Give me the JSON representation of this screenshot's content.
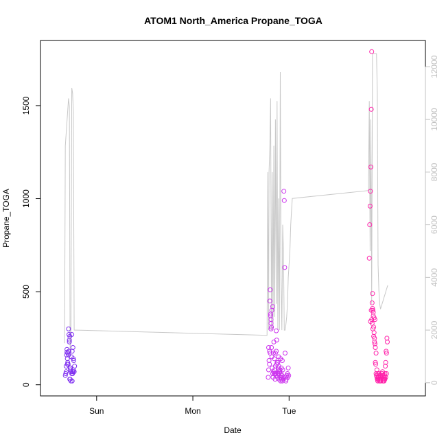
{
  "chart_data": {
    "type": "scatter",
    "title": "ATOM1 North_America Propane_TOGA",
    "xlabel": "Date",
    "ylabel": "Propane_TOGA",
    "x_ticks": [
      "Sun",
      "Mon",
      "Tue"
    ],
    "y_ticks": [
      0,
      500,
      1000,
      1500
    ],
    "y2_ticks": [
      0,
      2000,
      4000,
      6000,
      8000,
      10000,
      12000
    ],
    "ylim": [
      -60,
      1850
    ],
    "y2lim": [
      -500,
      13000
    ],
    "xlim_hours": [
      -14,
      82
    ],
    "x_tick_hours": [
      0,
      24,
      48
    ],
    "grid": false,
    "colors": {
      "cluster1": "#7f2ff0",
      "cluster2": "#cc33ee",
      "cluster3": "#ff22aa",
      "secondary_line": "#c8c8c8",
      "right_axis": "#c0c0c0"
    },
    "series": [
      {
        "kind": "points",
        "x_hours": [
          -7.8,
          -7.7,
          -7.6,
          -7.5,
          -7.4,
          -7.3,
          -7.2,
          -7.1,
          -7.0,
          -6.9,
          -6.8,
          -6.7,
          -6.6,
          -6.5,
          -6.4,
          -6.3,
          -6.2,
          -6.1,
          -6.0,
          -5.9,
          -5.8,
          -5.7,
          -5.6,
          -5.5,
          -7.6,
          -7.4,
          -7.2,
          -7.0,
          -6.8,
          -6.6,
          -6.4,
          -6.2,
          -6.0,
          -5.8,
          -6.9,
          -6.5,
          -6.1,
          -5.7,
          -7.3,
          -6.7
        ],
        "y": [
          50,
          60,
          100,
          160,
          190,
          140,
          120,
          110,
          300,
          270,
          230,
          260,
          90,
          80,
          70,
          150,
          60,
          180,
          70,
          200,
          80,
          130,
          70,
          100,
          70,
          175,
          170,
          160,
          240,
          30,
          20,
          270,
          60,
          140,
          180,
          90,
          20,
          70,
          110,
          30
        ]
      },
      {
        "kind": "points",
        "x_hours": [
          42.8,
          42.9,
          43.0,
          43.1,
          43.2,
          43.3,
          43.4,
          43.5,
          43.6,
          43.7,
          43.8,
          43.9,
          44.0,
          44.1,
          44.2,
          44.3,
          44.4,
          44.5,
          44.6,
          44.7,
          44.8,
          44.9,
          45.0,
          45.1,
          45.2,
          45.3,
          45.4,
          45.5,
          45.6,
          45.7,
          45.8,
          45.9,
          46.0,
          46.1,
          46.2,
          46.3,
          46.4,
          46.5,
          46.6,
          46.7,
          46.8,
          46.9,
          47.0,
          47.1,
          47.2,
          47.3,
          47.4,
          42.9,
          43.1,
          43.3,
          43.5,
          43.7,
          43.9,
          44.1,
          44.3,
          44.5,
          44.7,
          44.9,
          45.1,
          45.3,
          45.5,
          45.7,
          45.9,
          46.1,
          46.3,
          47.6,
          47.7,
          47.8,
          47.9,
          43.4,
          43.5,
          43.6,
          44.6,
          44.8,
          45.2,
          45.4,
          46.0
        ],
        "y": [
          40,
          80,
          130,
          180,
          450,
          510,
          380,
          300,
          200,
          150,
          90,
          60,
          40,
          170,
          230,
          140,
          80,
          60,
          100,
          50,
          290,
          240,
          120,
          40,
          60,
          90,
          150,
          30,
          70,
          80,
          40,
          20,
          60,
          90,
          50,
          130,
          80,
          40,
          30,
          1040,
          990,
          630,
          170,
          40,
          20,
          30,
          50,
          200,
          110,
          170,
          350,
          400,
          420,
          70,
          60,
          30,
          60,
          110,
          40,
          80,
          60,
          70,
          140,
          30,
          20,
          60,
          40,
          90,
          50,
          370,
          330,
          310,
          170,
          180,
          120,
          100,
          40
        ]
      },
      {
        "kind": "points",
        "x_hours": [
          68.0,
          68.1,
          68.2,
          68.3,
          68.4,
          68.5,
          68.6,
          68.7,
          68.8,
          68.9,
          69.0,
          69.1,
          69.2,
          69.3,
          69.4,
          69.5,
          69.6,
          69.7,
          69.8,
          69.9,
          70.0,
          70.1,
          70.2,
          70.3,
          70.4,
          70.5,
          70.6,
          70.7,
          70.8,
          70.9,
          71.0,
          71.1,
          71.2,
          71.3,
          71.4,
          71.5,
          71.6,
          71.7,
          71.8,
          71.9,
          72.0,
          72.1,
          72.2,
          72.3,
          72.4,
          72.5,
          68.3,
          68.5,
          68.7,
          68.9,
          69.1,
          69.3,
          69.5,
          69.7,
          69.9,
          70.1,
          70.3,
          70.5,
          70.7,
          70.9,
          71.1,
          71.3,
          71.5,
          71.7,
          71.9,
          72.1,
          72.3,
          68.6,
          68.8,
          69.0,
          69.2,
          69.4,
          70.2,
          70.6,
          71.0,
          71.4,
          71.8
        ],
        "y": [
          680,
          860,
          960,
          1040,
          1170,
          1480,
          1790,
          440,
          490,
          400,
          370,
          310,
          280,
          230,
          220,
          120,
          110,
          60,
          50,
          40,
          30,
          20,
          30,
          40,
          60,
          20,
          30,
          40,
          50,
          20,
          30,
          40,
          60,
          70,
          30,
          20,
          40,
          50,
          30,
          60,
          100,
          120,
          180,
          170,
          250,
          230,
          340,
          400,
          330,
          300,
          260,
          250,
          200,
          170,
          80,
          60,
          40,
          30,
          20,
          30,
          40,
          50,
          30,
          20,
          30,
          40,
          60,
          350,
          410,
          390,
          360,
          350,
          40,
          50,
          30,
          20,
          40
        ]
      },
      {
        "kind": "line",
        "axis": "right",
        "x_hours": [
          -8.0,
          -7.8,
          -7.0,
          -6.8,
          -6.6,
          -6.4,
          -6.2,
          -6.0,
          -5.8,
          -5.6,
          -5.4,
          -5.2,
          -5.0,
          42.5,
          42.7,
          42.9,
          43.0,
          43.2,
          43.4,
          43.6,
          43.8,
          44.0,
          44.2,
          44.4,
          44.6,
          44.8,
          45.0,
          45.2,
          45.4,
          45.6,
          45.8,
          46.0,
          46.2,
          46.4,
          46.6,
          46.8,
          47.0,
          47.2,
          47.4,
          47.6,
          47.8,
          48.0,
          48.2,
          48.4,
          48.6,
          48.8,
          67.8,
          68.0,
          68.2,
          68.4,
          68.6,
          68.8,
          69.0,
          69.2,
          69.4,
          69.6,
          69.8,
          70.0,
          70.2,
          70.4,
          70.6,
          70.8,
          71.0,
          71.2,
          71.4,
          71.6,
          71.8,
          72.0,
          72.2,
          72.4,
          72.6
        ],
        "y2": [
          1500,
          9000,
          10800,
          10500,
          1000,
          2000,
          11200,
          11000,
          10300,
          2000,
          2000,
          2000,
          2000,
          1800,
          8000,
          2000,
          8000,
          9000,
          10800,
          2000,
          8000,
          2000,
          9000,
          2500,
          10000,
          3000,
          10700,
          2000,
          7000,
          2000,
          11800,
          4000,
          2000,
          6000,
          5000,
          2000,
          2000,
          2200,
          2500,
          3000,
          4000,
          4500,
          5000,
          6000,
          6500,
          7000,
          7300,
          10700,
          5000,
          10000,
          3000,
          12500,
          12500,
          12500,
          12500,
          12500,
          12500,
          11000,
          4500,
          3500,
          3000,
          2800,
          2900,
          3000,
          3100,
          3200,
          3300,
          3400,
          3500,
          3600,
          3700
        ]
      }
    ]
  }
}
